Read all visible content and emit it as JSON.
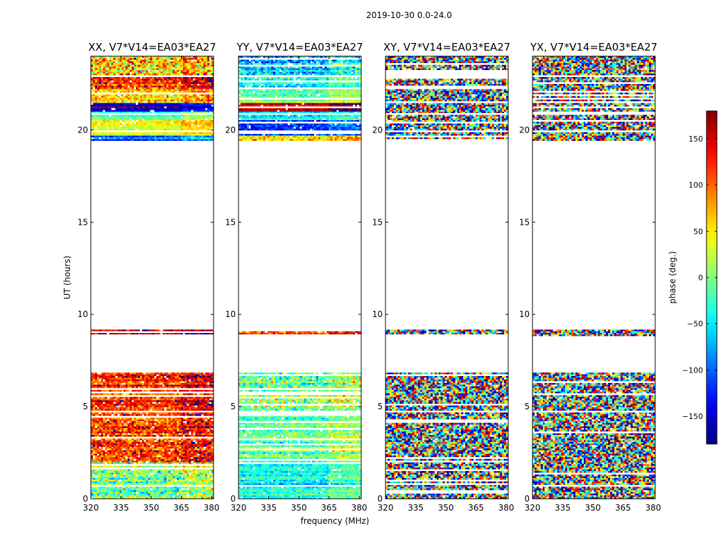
{
  "figure": {
    "suptitle": "2019-10-30 0.0-24.0",
    "xlabel": "frequency (MHz)",
    "ylabel": "UT (hours)",
    "colorbar_label": "phase (deg.)"
  },
  "chart_data": {
    "type": "heatmap",
    "colormap": "jet",
    "clim": [
      -180,
      180
    ],
    "colorbar_ticks": [
      -150,
      -100,
      -50,
      0,
      50,
      100,
      150
    ],
    "colorbar_tick_labels": [
      "−150",
      "−100",
      "−50",
      "0",
      "50",
      "100",
      "150"
    ],
    "xlim": [
      320,
      381
    ],
    "ylim": [
      0,
      24
    ],
    "xticks": [
      320,
      335,
      350,
      365,
      380
    ],
    "xtick_labels": [
      "320",
      "335",
      "350",
      "365",
      "380"
    ],
    "yticks": [
      0,
      5,
      10,
      15,
      20
    ],
    "ytick_labels": [
      "0",
      "5",
      "10",
      "15",
      "20"
    ],
    "data_ranges_hours": [
      [
        0.0,
        6.8
      ],
      [
        8.8,
        9.2
      ],
      [
        19.4,
        24.0
      ]
    ],
    "gap_bands_hours": [
      [
        4.7,
        4.75
      ],
      [
        19.88,
        19.96
      ],
      [
        20.8,
        20.88
      ],
      [
        22.9,
        23.0
      ]
    ],
    "panels": [
      {
        "title": "XX, V7*V14=EA03*EA27",
        "mode": "coherent",
        "segments": [
          [
            0.0,
            2.0,
            0.0,
            110
          ],
          [
            2.0,
            4.5,
            110,
            100
          ],
          [
            4.5,
            6.8,
            120,
            80
          ],
          [
            8.8,
            9.2,
            140,
            80
          ],
          [
            19.4,
            19.7,
            -90,
            60
          ],
          [
            19.7,
            20.5,
            40,
            50
          ],
          [
            20.5,
            21.0,
            -20,
            60
          ],
          [
            21.0,
            21.5,
            -150,
            30
          ],
          [
            21.5,
            22.2,
            60,
            90
          ],
          [
            22.2,
            23.0,
            120,
            90
          ],
          [
            23.0,
            24.0,
            60,
            140
          ]
        ]
      },
      {
        "title": "YY, V7*V14=EA03*EA27",
        "mode": "coherent",
        "segments": [
          [
            0.0,
            2.0,
            -40,
            60
          ],
          [
            2.0,
            4.5,
            -10,
            70
          ],
          [
            4.5,
            6.8,
            0,
            110
          ],
          [
            8.8,
            9.2,
            100,
            80
          ],
          [
            19.4,
            19.7,
            60,
            90
          ],
          [
            19.7,
            20.5,
            -120,
            70
          ],
          [
            20.5,
            21.0,
            -60,
            50
          ],
          [
            21.0,
            21.5,
            140,
            30
          ],
          [
            21.5,
            22.2,
            -20,
            60
          ],
          [
            22.2,
            23.0,
            -40,
            70
          ],
          [
            23.0,
            24.0,
            -60,
            110
          ]
        ]
      },
      {
        "title": "XY, V7*V14=EA03*EA27",
        "mode": "noise",
        "segments": []
      },
      {
        "title": "YX, V7*V14=EA03*EA27",
        "mode": "noise",
        "segments": []
      }
    ]
  }
}
